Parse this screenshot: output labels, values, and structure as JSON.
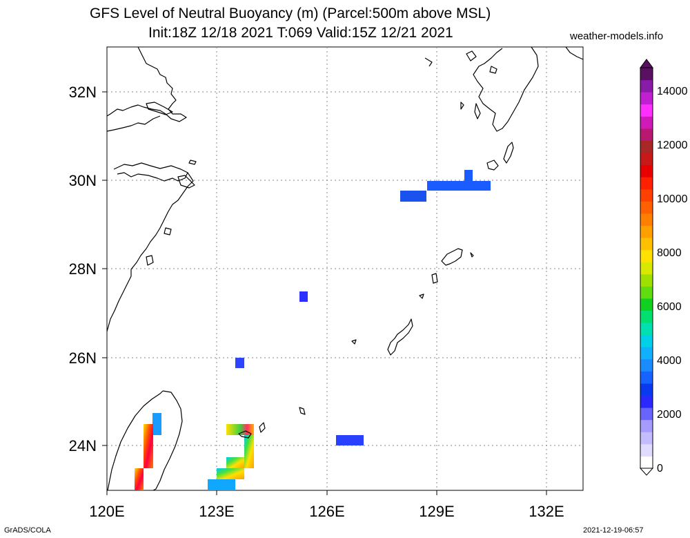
{
  "header": {
    "title_line1": "GFS Level of Neutral Buoyancy (m) (Parcel:500m above MSL)",
    "title_line2": "Init:18Z 12/18 2021 T:069 Valid:15Z 12/21 2021",
    "site": "weather-models.info"
  },
  "map": {
    "lon_labels": [
      "120E",
      "123E",
      "126E",
      "129E",
      "132E"
    ],
    "lat_labels": [
      "32N",
      "30N",
      "28N",
      "26N",
      "24N"
    ],
    "grid": true
  },
  "colorbar": {
    "labels": [
      "0",
      "2000",
      "4000",
      "6000",
      "8000",
      "10000",
      "12000",
      "14000"
    ],
    "colors": [
      "#ffffff",
      "#e0dcff",
      "#c4bcff",
      "#a49cff",
      "#6a64ff",
      "#2a28ff",
      "#0a3af0",
      "#1564ff",
      "#1a8cff",
      "#10b0ff",
      "#00d0e8",
      "#00e0b0",
      "#00e070",
      "#10d020",
      "#60dc10",
      "#a0e000",
      "#d8e800",
      "#ffe000",
      "#ffc000",
      "#ffa000",
      "#ff8000",
      "#ff6000",
      "#ff4000",
      "#ff2000",
      "#e80000",
      "#c81818",
      "#a82828",
      "#b81870",
      "#d01ab8",
      "#ff30ff",
      "#c020d0",
      "#8a1aa8",
      "#5a1060"
    ]
  },
  "footer": {
    "left": "GrADS/COLA",
    "right": "2021-12-19-06:57"
  }
}
